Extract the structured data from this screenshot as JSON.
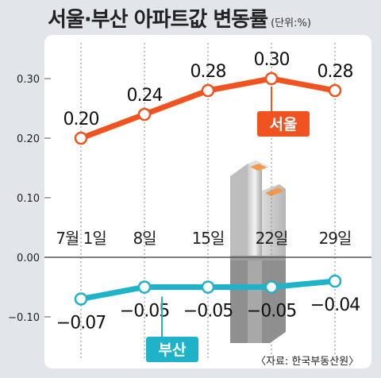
{
  "chart_data": {
    "type": "line",
    "title": "서울·부산 아파트값 변동률",
    "unit": "(단위:%)",
    "categories": [
      "7월 1일",
      "8일",
      "15일",
      "22일",
      "29일"
    ],
    "series": [
      {
        "name": "서울",
        "values": [
          0.2,
          0.24,
          0.28,
          0.3,
          0.28
        ],
        "labels": [
          "0.20",
          "0.24",
          "0.28",
          "0.30",
          "0.28"
        ],
        "color": "#f0531f"
      },
      {
        "name": "부산",
        "values": [
          -0.07,
          -0.05,
          -0.05,
          -0.05,
          -0.04
        ],
        "labels": [
          "−0.07",
          "−0.05",
          "−0.05",
          "−0.05",
          "−0.04"
        ],
        "color": "#1fb3c9"
      }
    ],
    "yticks": [
      0.3,
      0.2,
      0.1,
      0.0,
      -0.1
    ],
    "ytick_labels": [
      "0.30",
      "0.20",
      "0.10",
      "0.00",
      "−0.10"
    ],
    "ylim": [
      -0.15,
      0.36
    ],
    "grid": "vertical dashed",
    "source": "〈자료: 한국부동산원〉"
  }
}
